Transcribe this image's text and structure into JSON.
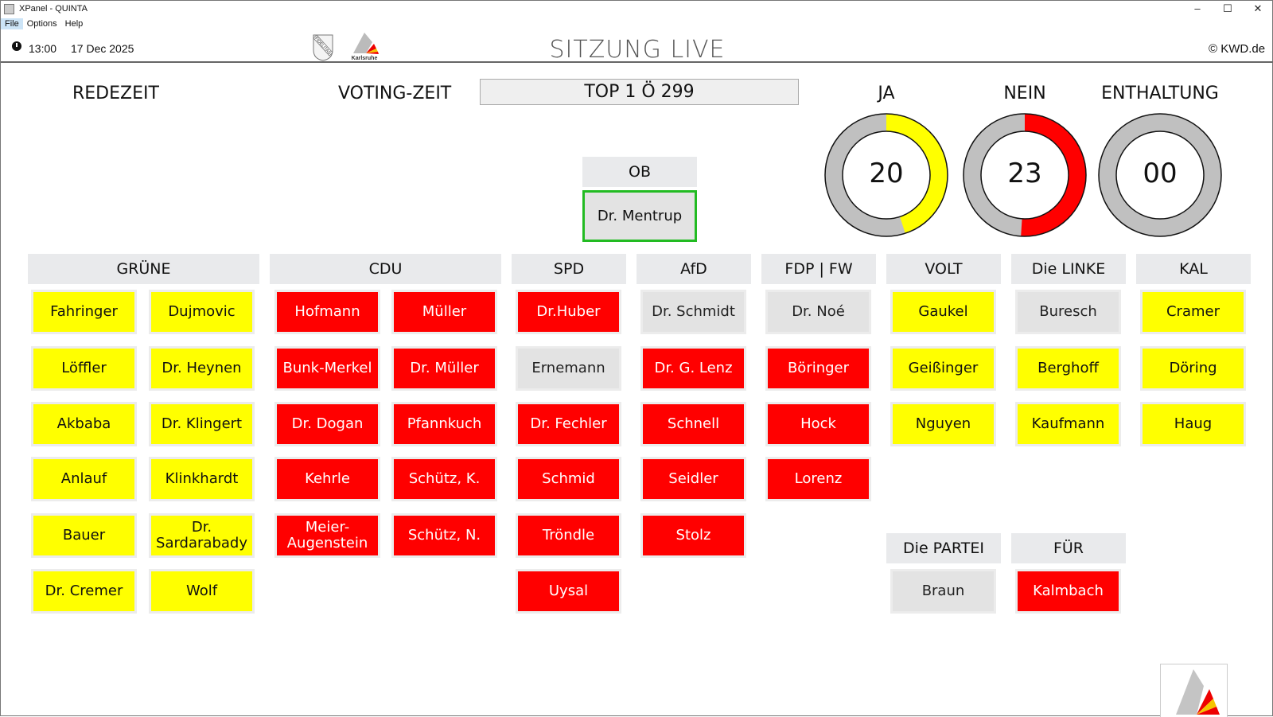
{
  "window": {
    "title": "XPanel - QUINTA",
    "menu": [
      "File",
      "Options",
      "Help"
    ]
  },
  "header": {
    "time": "13:00",
    "date": "17 Dec 2025",
    "title": "SITZUNG LIVE",
    "copyright": "© KWD.de",
    "logo_text": "Karlsruhe",
    "crest_text": "FIDELITAS"
  },
  "labels": {
    "redezeit": "REDEZEIT",
    "voting_zeit": "VOTING-ZEIT",
    "agenda_item": "TOP 1 Ö 299"
  },
  "results": [
    {
      "label": "JA",
      "value": "20",
      "fill": 0.45,
      "color": "#ffff00"
    },
    {
      "label": "NEIN",
      "value": "23",
      "fill": 0.51,
      "color": "#ff0000"
    },
    {
      "label": "ENTHALTUNG",
      "value": "00",
      "fill": 0,
      "color": "#ff0000"
    }
  ],
  "colors": {
    "ja": "#ffff00",
    "nein": "#ff0000",
    "none": "#e3e3e3",
    "present": "#22bb22",
    "ring": "#c0c0c0"
  },
  "ob": {
    "label": "OB",
    "member": "Dr. Mentrup"
  },
  "parties": [
    {
      "name": "GRÜNE",
      "members": [
        [
          "Fahringer",
          "ja"
        ],
        [
          "Dujmovic",
          "ja"
        ],
        [
          "Löffler",
          "ja"
        ],
        [
          "Dr. Heynen",
          "ja"
        ],
        [
          "Akbaba",
          "ja"
        ],
        [
          "Dr. Klingert",
          "ja"
        ],
        [
          "Anlauf",
          "ja"
        ],
        [
          "Klinkhardt",
          "ja"
        ],
        [
          "Bauer",
          "ja"
        ],
        [
          "Dr. Sardarabady",
          "ja"
        ],
        [
          "Dr. Cremer",
          "ja"
        ],
        [
          "Wolf",
          "ja"
        ]
      ]
    },
    {
      "name": "CDU",
      "members": [
        [
          "Hofmann",
          "nein"
        ],
        [
          "Müller",
          "nein"
        ],
        [
          "Bunk-Merkel",
          "nein"
        ],
        [
          "Dr. Müller",
          "nein"
        ],
        [
          "Dr. Dogan",
          "nein"
        ],
        [
          "Pfannkuch",
          "nein"
        ],
        [
          "Kehrle",
          "nein"
        ],
        [
          "Schütz, K.",
          "nein"
        ],
        [
          "Meier-Augenstein",
          "nein"
        ],
        [
          "Schütz, N.",
          "nein"
        ]
      ]
    },
    {
      "name": "SPD",
      "members": [
        [
          "Dr.Huber",
          "nein"
        ],
        [
          "Ernemann",
          "none"
        ],
        [
          "Dr. Fechler",
          "nein"
        ],
        [
          "Schmid",
          "nein"
        ],
        [
          "Tröndle",
          "nein"
        ],
        [
          "Uysal",
          "nein"
        ]
      ]
    },
    {
      "name": "AfD",
      "members": [
        [
          "Dr. Schmidt",
          "none"
        ],
        [
          "Dr. G. Lenz",
          "nein"
        ],
        [
          "Schnell",
          "nein"
        ],
        [
          "Seidler",
          "nein"
        ],
        [
          "Stolz",
          "nein"
        ]
      ]
    },
    {
      "name": "FDP | FW",
      "members": [
        [
          "Dr. Noé",
          "none"
        ],
        [
          "Böringer",
          "nein"
        ],
        [
          "Hock",
          "nein"
        ],
        [
          "Lorenz",
          "nein"
        ]
      ]
    },
    {
      "name": "VOLT",
      "members": [
        [
          "Gaukel",
          "ja"
        ],
        [
          "Geißinger",
          "ja"
        ],
        [
          "Nguyen",
          "ja"
        ]
      ]
    },
    {
      "name": "Die LINKE",
      "members": [
        [
          "Buresch",
          "none"
        ],
        [
          "Berghoff",
          "ja"
        ],
        [
          "Kaufmann",
          "ja"
        ]
      ]
    },
    {
      "name": "KAL",
      "members": [
        [
          "Cramer",
          "ja"
        ],
        [
          "Döring",
          "ja"
        ],
        [
          "Haug",
          "ja"
        ]
      ]
    },
    {
      "name": "Die PARTEI",
      "members": [
        [
          "Braun",
          "none"
        ]
      ]
    },
    {
      "name": "FÜR",
      "members": [
        [
          "Kalmbach",
          "nein"
        ]
      ]
    }
  ]
}
